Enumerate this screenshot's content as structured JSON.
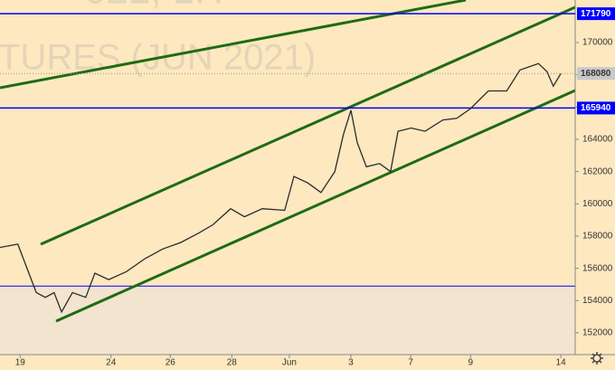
{
  "chart_data": {
    "type": "line",
    "watermark": "TURES (JUN 2021)",
    "watermark_top": "021, 1H",
    "x": [
      0,
      3.1,
      4.7,
      6.3,
      7.9,
      9.4,
      10.7,
      12.6,
      14.9,
      16.5,
      18.9,
      22,
      25.2,
      28.3,
      31.4,
      34.6,
      37,
      40.1,
      42.5,
      45.6,
      49.5,
      51.1,
      53.5,
      55.8,
      58.2,
      59.7,
      61,
      62.1,
      63.7,
      66,
      67.9,
      69.2,
      71.5,
      73.9,
      77,
      79.4,
      81.8,
      84.9,
      88.1,
      90.4,
      93.6,
      95.1,
      96.2,
      97.5
    ],
    "values": [
      157300,
      157500,
      156000,
      154500,
      154200,
      154500,
      153300,
      154500,
      154200,
      155700,
      155300,
      155800,
      156600,
      157200,
      157600,
      158200,
      158700,
      159700,
      159200,
      159700,
      159600,
      161700,
      161300,
      160700,
      162000,
      164300,
      165800,
      163800,
      162300,
      162500,
      162000,
      164500,
      164700,
      164500,
      165200,
      165300,
      165900,
      167000,
      167000,
      168300,
      168700,
      168200,
      167300,
      168080
    ],
    "color": "#2b2b2b",
    "xlim": [
      0,
      100
    ],
    "xticks": [
      {
        "value": 3.5,
        "label": "19"
      },
      {
        "value": 19.3,
        "label": "24"
      },
      {
        "value": 29.6,
        "label": "26"
      },
      {
        "value": 40.3,
        "label": "28"
      },
      {
        "value": 50.3,
        "label": "Jun"
      },
      {
        "value": 61,
        "label": "3"
      },
      {
        "value": 71.4,
        "label": "7"
      },
      {
        "value": 81.8,
        "label": "9"
      },
      {
        "value": 97.5,
        "label": "14"
      }
    ],
    "ylim": [
      150650,
      172640
    ],
    "yticks": [
      152000,
      154000,
      156000,
      158000,
      160000,
      162000,
      164000,
      166000,
      168000,
      170000
    ],
    "levels": [
      171790,
      165940
    ],
    "level_color": "#0000ff",
    "zone_top": 154900,
    "last": 168080
  }
}
